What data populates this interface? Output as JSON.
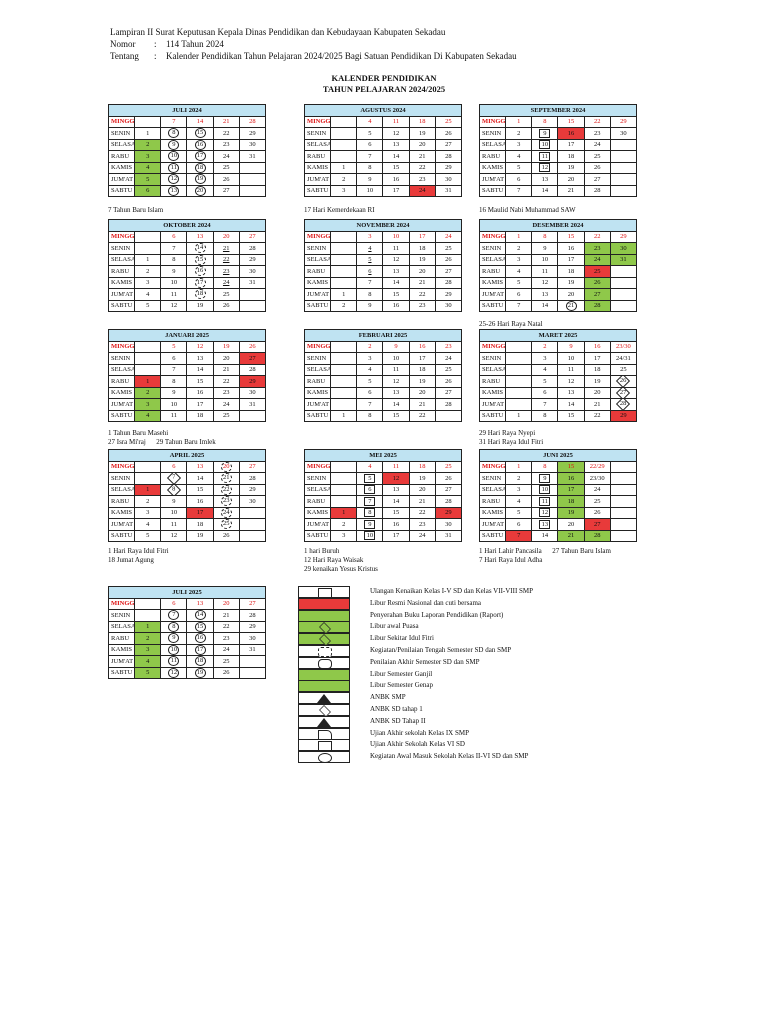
{
  "header": {
    "line1": "Lampiran II Surat Keputusan Kepala Dinas Pendidikan dan Kebudayaan Kabupaten Sekadau",
    "nomor_label": "Nomor",
    "nomor_value": "114  Tahun 2024",
    "tentang_label": "Tentang",
    "tentang_value": "Kalender Pendidikan Tahun Pelajaran 2024/2025 Bagi Satuan Pendidikan Di Kabupaten Sekadau",
    "colon": ":"
  },
  "title": {
    "line1": "KALENDER PENDIDIKAN",
    "line2": "TAHUN PELAJARAN 2024/2025"
  },
  "days": [
    "MINGGU",
    "SENIN",
    "SELASA",
    "RABU",
    "KAMIS",
    "JUM'AT",
    "SABTU"
  ],
  "months": [
    {
      "id": "jul24",
      "name": "JULI 2024",
      "rows": [
        [
          "",
          "7",
          "14",
          "21",
          "28"
        ],
        [
          "1",
          "8",
          "15",
          "22",
          "29"
        ],
        [
          "2",
          "9",
          "16",
          "23",
          "30"
        ],
        [
          "3",
          "10",
          "17",
          "24",
          "31"
        ],
        [
          "4",
          "11",
          "18",
          "25",
          ""
        ],
        [
          "5",
          "12",
          "19",
          "26",
          ""
        ],
        [
          "6",
          "13",
          "20",
          "27",
          ""
        ]
      ],
      "notes": "7 Tahun Baru Islam"
    },
    {
      "id": "aug24",
      "name": "AGUSTUS 2024",
      "rows": [
        [
          "",
          "4",
          "11",
          "18",
          "25"
        ],
        [
          "",
          "5",
          "12",
          "19",
          "26"
        ],
        [
          "",
          "6",
          "13",
          "20",
          "27"
        ],
        [
          "",
          "7",
          "14",
          "21",
          "28"
        ],
        [
          "1",
          "8",
          "15",
          "22",
          "29"
        ],
        [
          "2",
          "9",
          "16",
          "23",
          "30"
        ],
        [
          "3",
          "10",
          "17",
          "24",
          "31"
        ]
      ],
      "notes": "17 Hari Kemerdekaan RI"
    },
    {
      "id": "sep24",
      "name": "SEPTEMBER 2024",
      "rows": [
        [
          "1",
          "8",
          "15",
          "22",
          "29"
        ],
        [
          "2",
          "9",
          "16",
          "23",
          "30"
        ],
        [
          "3",
          "10",
          "17",
          "24",
          ""
        ],
        [
          "4",
          "11",
          "18",
          "25",
          ""
        ],
        [
          "5",
          "12",
          "19",
          "26",
          ""
        ],
        [
          "6",
          "13",
          "20",
          "27",
          ""
        ],
        [
          "7",
          "14",
          "21",
          "28",
          ""
        ]
      ],
      "notes": "16 Maulid Nabi Muhammad SAW"
    },
    {
      "id": "oct24",
      "name": "OKTOBER 2024",
      "rows": [
        [
          "",
          "6",
          "13",
          "20",
          "27"
        ],
        [
          "",
          "7",
          "14",
          "21",
          "28"
        ],
        [
          "1",
          "8",
          "15",
          "22",
          "29"
        ],
        [
          "2",
          "9",
          "16",
          "23",
          "30"
        ],
        [
          "3",
          "10",
          "17",
          "24",
          "31"
        ],
        [
          "4",
          "11",
          "18",
          "25",
          ""
        ],
        [
          "5",
          "12",
          "19",
          "26",
          ""
        ]
      ],
      "notes": ""
    },
    {
      "id": "nov24",
      "name": "NOVEMBER 2024",
      "rows": [
        [
          "",
          "3",
          "10",
          "17",
          "24"
        ],
        [
          "",
          "4",
          "11",
          "18",
          "25"
        ],
        [
          "",
          "5",
          "12",
          "19",
          "26"
        ],
        [
          "",
          "6",
          "13",
          "20",
          "27"
        ],
        [
          "",
          "7",
          "14",
          "21",
          "28"
        ],
        [
          "1",
          "8",
          "15",
          "22",
          "29"
        ],
        [
          "2",
          "9",
          "16",
          "23",
          "30"
        ]
      ],
      "notes": ""
    },
    {
      "id": "dec24",
      "name": "DESEMBER 2024",
      "rows": [
        [
          "1",
          "8",
          "15",
          "22",
          "29"
        ],
        [
          "2",
          "9",
          "16",
          "23",
          "30"
        ],
        [
          "3",
          "10",
          "17",
          "24",
          "31"
        ],
        [
          "4",
          "11",
          "18",
          "25",
          ""
        ],
        [
          "5",
          "12",
          "19",
          "26",
          ""
        ],
        [
          "6",
          "13",
          "20",
          "27",
          ""
        ],
        [
          "7",
          "14",
          "21",
          "28",
          ""
        ]
      ],
      "notes": "25-26 Hari Raya Natal"
    },
    {
      "id": "jan25",
      "name": "JANUARI 2025",
      "rows": [
        [
          "",
          "5",
          "12",
          "19",
          "26"
        ],
        [
          "",
          "6",
          "13",
          "20",
          "27"
        ],
        [
          "",
          "7",
          "14",
          "21",
          "28"
        ],
        [
          "1",
          "8",
          "15",
          "22",
          "29"
        ],
        [
          "2",
          "9",
          "16",
          "23",
          "30"
        ],
        [
          "3",
          "10",
          "17",
          "24",
          "31"
        ],
        [
          "4",
          "11",
          "18",
          "25",
          ""
        ]
      ],
      "notes": "1 Tahun Baru Masehi\n27 Isra Mi'raj      29 Tahun Baru Imlek"
    },
    {
      "id": "feb25",
      "name": "FEBRUARI 2025",
      "rows": [
        [
          "",
          "2",
          "9",
          "16",
          "23"
        ],
        [
          "",
          "3",
          "10",
          "17",
          "24"
        ],
        [
          "",
          "4",
          "11",
          "18",
          "25"
        ],
        [
          "",
          "5",
          "12",
          "19",
          "26"
        ],
        [
          "",
          "6",
          "13",
          "20",
          "27"
        ],
        [
          "",
          "7",
          "14",
          "21",
          "28"
        ],
        [
          "1",
          "8",
          "15",
          "22",
          ""
        ]
      ],
      "notes": ""
    },
    {
      "id": "mar25",
      "name": "MARET 2025",
      "rows": [
        [
          "",
          "2",
          "9",
          "16",
          "23/30"
        ],
        [
          "",
          "3",
          "10",
          "17",
          "24/31"
        ],
        [
          "",
          "4",
          "11",
          "18",
          "25"
        ],
        [
          "",
          "5",
          "12",
          "19",
          "26"
        ],
        [
          "",
          "6",
          "13",
          "20",
          "27"
        ],
        [
          "",
          "7",
          "14",
          "21",
          "28"
        ],
        [
          "1",
          "8",
          "15",
          "22",
          "29"
        ]
      ],
      "notes": "29 Hari Raya Nyepi\n31 Hari Raya Idul Fitri"
    },
    {
      "id": "apr25",
      "name": "APRIL 2025",
      "rows": [
        [
          "",
          "6",
          "13",
          "20",
          "27"
        ],
        [
          "",
          "7",
          "14",
          "21",
          "28"
        ],
        [
          "1",
          "8",
          "15",
          "22",
          "29"
        ],
        [
          "2",
          "9",
          "16",
          "23",
          "30"
        ],
        [
          "3",
          "10",
          "17",
          "24",
          ""
        ],
        [
          "4",
          "11",
          "18",
          "25",
          ""
        ],
        [
          "5",
          "12",
          "19",
          "26",
          ""
        ]
      ],
      "notes": "1 Hari Raya Idul Fitri\n18 Jumat Agung"
    },
    {
      "id": "may25",
      "name": "MEI 2025",
      "rows": [
        [
          "",
          "4",
          "11",
          "18",
          "25"
        ],
        [
          "",
          "5",
          "12",
          "19",
          "26"
        ],
        [
          "",
          "6",
          "13",
          "20",
          "27"
        ],
        [
          "",
          "7",
          "14",
          "21",
          "28"
        ],
        [
          "1",
          "8",
          "15",
          "22",
          "29"
        ],
        [
          "2",
          "9",
          "16",
          "23",
          "30"
        ],
        [
          "3",
          "10",
          "17",
          "24",
          "31"
        ]
      ],
      "notes": "1 hari Buruh\n12 Hari Raya Waisak\n29 kenaikan Yesus Kristus"
    },
    {
      "id": "jun25",
      "name": "JUNI 2025",
      "rows": [
        [
          "1",
          "8",
          "15",
          "22/29",
          ""
        ],
        [
          "2",
          "9",
          "16",
          "23/30",
          ""
        ],
        [
          "3",
          "10",
          "17",
          "24",
          ""
        ],
        [
          "4",
          "11",
          "18",
          "25",
          ""
        ],
        [
          "5",
          "12",
          "19",
          "26",
          ""
        ],
        [
          "6",
          "13",
          "20",
          "27",
          ""
        ],
        [
          "7",
          "14",
          "21",
          "28",
          ""
        ]
      ],
      "notes": "1 Hari Lahir Pancasila      27 Tahun Baru Islam\n7 Hari Raya Idul Adha"
    },
    {
      "id": "jul25",
      "name": "JULI 2025",
      "rows": [
        [
          "",
          "6",
          "13",
          "20",
          "27"
        ],
        [
          "",
          "7",
          "14",
          "21",
          "28"
        ],
        [
          "1",
          "8",
          "15",
          "22",
          "29"
        ],
        [
          "2",
          "9",
          "16",
          "23",
          "30"
        ],
        [
          "3",
          "10",
          "17",
          "24",
          "31"
        ],
        [
          "4",
          "11",
          "18",
          "25",
          ""
        ],
        [
          "5",
          "12",
          "19",
          "26",
          ""
        ]
      ],
      "notes": ""
    }
  ],
  "legend": [
    {
      "label": "Ulangan Kenaikan Kelas I-V SD dan Kelas VII-VIII SMP",
      "swatch": "square",
      "color": "#ffffff"
    },
    {
      "label": "Libur Resmi Nasional dan cuti bersama",
      "swatch": "fill",
      "color": "#e83a3a"
    },
    {
      "label": "Penyerahan Buku Laporan Pendidikan (Raport)",
      "swatch": "fill",
      "color": "#8fc84a"
    },
    {
      "label": "Libur awal Puasa",
      "swatch": "diamond",
      "color": "#8fc84a"
    },
    {
      "label": "Libur Sekitar Idul Fitri",
      "swatch": "diamond",
      "color": "#8fc84a"
    },
    {
      "label": "Kegiatan/Penilaian Tengah Semester SD dan SMP",
      "swatch": "octagon",
      "color": "#ffffff"
    },
    {
      "label": "Penilaian Akhir Semester SD dan SMP",
      "swatch": "rounded",
      "color": "#ffffff"
    },
    {
      "label": "Libur Semester Ganjil",
      "swatch": "fill",
      "color": "#8fc84a"
    },
    {
      "label": "Libur Semester Genap",
      "swatch": "fill",
      "color": "#8fc84a"
    },
    {
      "label": "ANBK SMP",
      "swatch": "triangle",
      "color": "#ffffff"
    },
    {
      "label": "ANBK SD tahap 1",
      "swatch": "diamond",
      "color": "#ffffff"
    },
    {
      "label": "ANBK SD Tahap II",
      "swatch": "triangle",
      "color": "#ffffff"
    },
    {
      "label": "Ujian Akhir sekolah Kelas IX SMP",
      "swatch": "flag",
      "color": "#ffffff"
    },
    {
      "label": "Ujian Akhir  Sekolah Kelas VI SD",
      "swatch": "rect",
      "color": "#ffffff"
    },
    {
      "label": "Kegiatan Awal Masuk Sekolah Kelas II-VI SD dan SMP",
      "swatch": "circle",
      "color": "#ffffff"
    }
  ],
  "colors": {
    "header_blue": "#bfe3f2",
    "holiday_red": "#e83a3a",
    "holiday_green": "#8fc84a"
  }
}
